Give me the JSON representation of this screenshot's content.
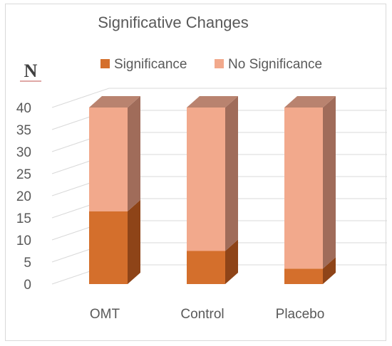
{
  "chart_data": {
    "type": "bar",
    "stacked": true,
    "style": "3d-column",
    "title": "Significative Changes",
    "ylabel": "N",
    "xlabel": "",
    "categories": [
      "OMT",
      "Control",
      "Placebo"
    ],
    "series": [
      {
        "name": "Significance",
        "values": [
          16.5,
          7.5,
          3.5
        ],
        "color": "#d46f2c",
        "side_color": "#8e4418",
        "top_color": "#c77a46"
      },
      {
        "name": "No Significance",
        "values": [
          23.5,
          32.5,
          36.5
        ],
        "color": "#f2a98c",
        "side_color": "#a06c5a",
        "top_color": "#b9836f"
      }
    ],
    "ylim": [
      0,
      40
    ],
    "yticks": [
      0,
      5,
      10,
      15,
      20,
      25,
      30,
      35,
      40
    ],
    "grid": true,
    "legend_position": "top"
  }
}
